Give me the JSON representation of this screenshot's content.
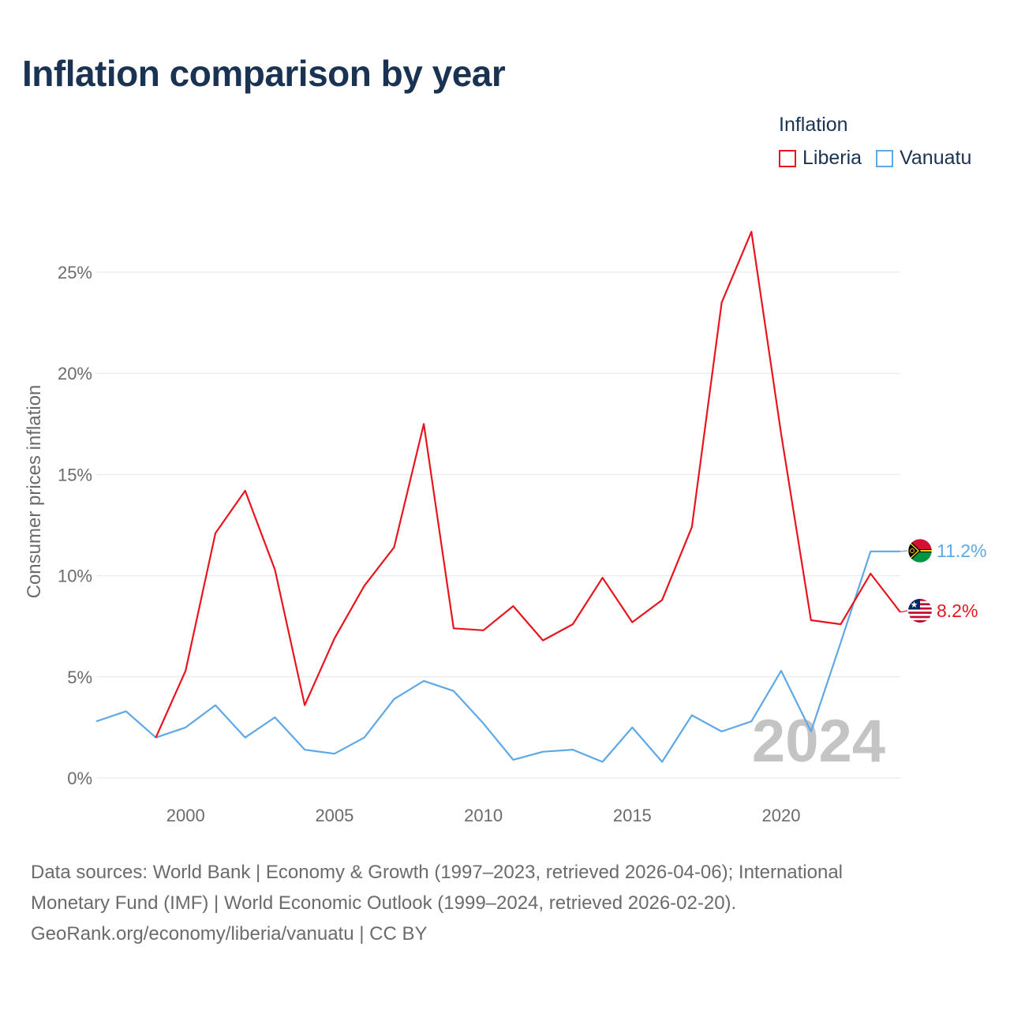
{
  "title": "Inflation comparison by year",
  "legend": {
    "title": "Inflation",
    "items": [
      {
        "label": "Liberia",
        "color": "#e8151e"
      },
      {
        "label": "Vanuatu",
        "color": "#5fa8e6"
      }
    ]
  },
  "year_watermark": "2024",
  "sources": [
    "Data sources: World Bank | Economy & Growth (1997–2023, retrieved 2026-04-06); International",
    "Monetary Fund (IMF) | World Economic Outlook (1999–2024, retrieved 2026-02-20).",
    "GeoRank.org/economy/liberia/vanuatu | CC BY"
  ],
  "chart_data": {
    "type": "line",
    "title": "Inflation comparison by year",
    "xlabel": "",
    "ylabel": "Consumer prices inflation",
    "xlim": [
      1997,
      2024
    ],
    "ylim": [
      0,
      27.5
    ],
    "x_ticks": [
      2000,
      2005,
      2010,
      2015,
      2020
    ],
    "y_ticks": [
      0,
      5,
      10,
      15,
      20,
      25
    ],
    "y_tick_labels": [
      "0%",
      "5%",
      "10%",
      "15%",
      "20%",
      "25%"
    ],
    "grid": true,
    "legend_position": "top-right",
    "series": [
      {
        "name": "Liberia",
        "color": "#e8151e",
        "x": [
          1999,
          2000,
          2001,
          2002,
          2003,
          2004,
          2005,
          2006,
          2007,
          2008,
          2009,
          2010,
          2011,
          2012,
          2013,
          2014,
          2015,
          2016,
          2017,
          2018,
          2019,
          2020,
          2021,
          2022,
          2023,
          2024
        ],
        "values": [
          2.0,
          5.3,
          12.1,
          14.2,
          10.3,
          3.6,
          6.9,
          9.5,
          11.4,
          17.5,
          7.4,
          7.3,
          8.5,
          6.8,
          7.6,
          9.9,
          7.7,
          8.8,
          12.4,
          23.5,
          27.0,
          17.0,
          7.8,
          7.6,
          10.1,
          8.2
        ],
        "end_label": "8.2%"
      },
      {
        "name": "Vanuatu",
        "color": "#5fa8e6",
        "x": [
          1997,
          1998,
          1999,
          2000,
          2001,
          2002,
          2003,
          2004,
          2005,
          2006,
          2007,
          2008,
          2009,
          2010,
          2011,
          2012,
          2013,
          2014,
          2015,
          2016,
          2017,
          2018,
          2019,
          2020,
          2021,
          2022,
          2023,
          2024
        ],
        "values": [
          2.8,
          3.3,
          2.0,
          2.5,
          3.6,
          2.0,
          3.0,
          1.4,
          1.2,
          2.0,
          3.9,
          4.8,
          4.3,
          2.7,
          0.9,
          1.3,
          1.4,
          0.8,
          2.5,
          0.8,
          3.1,
          2.3,
          2.8,
          5.3,
          2.3,
          6.7,
          11.2,
          11.2
        ],
        "end_label": "11.2%"
      }
    ]
  }
}
